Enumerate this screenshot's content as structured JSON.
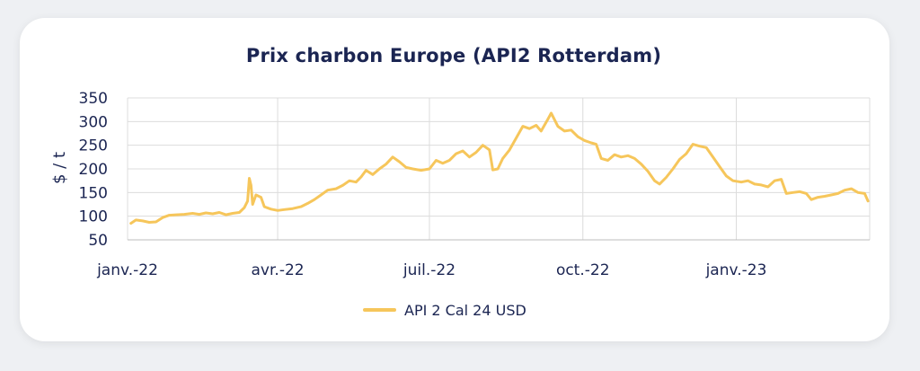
{
  "chart_data": {
    "type": "line",
    "title": "Prix charbon Europe (API2 Rotterdam)",
    "xlabel": "",
    "ylabel": "$ / t",
    "ylim": [
      50,
      350
    ],
    "yticks": [
      50,
      100,
      150,
      200,
      250,
      300,
      350
    ],
    "xtick_labels": [
      "janv.-22",
      "avr.-22",
      "juil.-22",
      "oct.-22",
      "janv.-23"
    ],
    "xtick_dates": [
      "2022-01-01",
      "2022-04-01",
      "2022-07-01",
      "2022-10-01",
      "2023-01-01"
    ],
    "xlim": [
      "2022-01-01",
      "2023-03-22"
    ],
    "grid": "horizontal and vertical",
    "legend": "bottom-center",
    "series": [
      {
        "name": "API 2 Cal 24 USD",
        "color": "#f6c65b",
        "points": [
          [
            "2022-01-03",
            85
          ],
          [
            "2022-01-06",
            92
          ],
          [
            "2022-01-10",
            90
          ],
          [
            "2022-01-14",
            87
          ],
          [
            "2022-01-18",
            88
          ],
          [
            "2022-01-22",
            97
          ],
          [
            "2022-01-26",
            102
          ],
          [
            "2022-01-30",
            103
          ],
          [
            "2022-02-04",
            104
          ],
          [
            "2022-02-09",
            106
          ],
          [
            "2022-02-13",
            104
          ],
          [
            "2022-02-17",
            107
          ],
          [
            "2022-02-21",
            105
          ],
          [
            "2022-02-25",
            108
          ],
          [
            "2022-03-01",
            103
          ],
          [
            "2022-03-05",
            106
          ],
          [
            "2022-03-09",
            108
          ],
          [
            "2022-03-12",
            118
          ],
          [
            "2022-03-14",
            132
          ],
          [
            "2022-03-15",
            180
          ],
          [
            "2022-03-16",
            165
          ],
          [
            "2022-03-17",
            125
          ],
          [
            "2022-03-19",
            145
          ],
          [
            "2022-03-22",
            140
          ],
          [
            "2022-03-24",
            120
          ],
          [
            "2022-03-28",
            115
          ],
          [
            "2022-04-01",
            112
          ],
          [
            "2022-04-05",
            114
          ],
          [
            "2022-04-10",
            116
          ],
          [
            "2022-04-15",
            120
          ],
          [
            "2022-04-19",
            127
          ],
          [
            "2022-04-23",
            135
          ],
          [
            "2022-04-27",
            145
          ],
          [
            "2022-05-01",
            155
          ],
          [
            "2022-05-06",
            158
          ],
          [
            "2022-05-10",
            165
          ],
          [
            "2022-05-14",
            175
          ],
          [
            "2022-05-18",
            172
          ],
          [
            "2022-05-21",
            183
          ],
          [
            "2022-05-24",
            197
          ],
          [
            "2022-05-28",
            188
          ],
          [
            "2022-06-01",
            200
          ],
          [
            "2022-06-05",
            210
          ],
          [
            "2022-06-09",
            225
          ],
          [
            "2022-06-13",
            215
          ],
          [
            "2022-06-17",
            203
          ],
          [
            "2022-06-21",
            200
          ],
          [
            "2022-06-26",
            197
          ],
          [
            "2022-07-01",
            200
          ],
          [
            "2022-07-05",
            218
          ],
          [
            "2022-07-09",
            212
          ],
          [
            "2022-07-13",
            218
          ],
          [
            "2022-07-17",
            232
          ],
          [
            "2022-07-21",
            238
          ],
          [
            "2022-07-25",
            225
          ],
          [
            "2022-07-29",
            235
          ],
          [
            "2022-08-02",
            250
          ],
          [
            "2022-08-06",
            240
          ],
          [
            "2022-08-08",
            198
          ],
          [
            "2022-08-11",
            200
          ],
          [
            "2022-08-14",
            222
          ],
          [
            "2022-08-18",
            240
          ],
          [
            "2022-08-22",
            265
          ],
          [
            "2022-08-26",
            290
          ],
          [
            "2022-08-30",
            285
          ],
          [
            "2022-09-03",
            292
          ],
          [
            "2022-09-06",
            280
          ],
          [
            "2022-09-10",
            305
          ],
          [
            "2022-09-12",
            318
          ],
          [
            "2022-09-16",
            290
          ],
          [
            "2022-09-20",
            280
          ],
          [
            "2022-09-24",
            282
          ],
          [
            "2022-09-28",
            268
          ],
          [
            "2022-10-02",
            260
          ],
          [
            "2022-10-06",
            255
          ],
          [
            "2022-10-09",
            252
          ],
          [
            "2022-10-12",
            222
          ],
          [
            "2022-10-16",
            218
          ],
          [
            "2022-10-20",
            230
          ],
          [
            "2022-10-24",
            225
          ],
          [
            "2022-10-28",
            228
          ],
          [
            "2022-11-01",
            222
          ],
          [
            "2022-11-05",
            210
          ],
          [
            "2022-11-09",
            195
          ],
          [
            "2022-11-13",
            175
          ],
          [
            "2022-11-16",
            168
          ],
          [
            "2022-11-20",
            182
          ],
          [
            "2022-11-24",
            200
          ],
          [
            "2022-11-28",
            220
          ],
          [
            "2022-12-02",
            232
          ],
          [
            "2022-12-06",
            252
          ],
          [
            "2022-12-10",
            248
          ],
          [
            "2022-12-14",
            245
          ],
          [
            "2022-12-18",
            225
          ],
          [
            "2022-12-22",
            205
          ],
          [
            "2022-12-26",
            185
          ],
          [
            "2022-12-30",
            175
          ],
          [
            "2023-01-04",
            172
          ],
          [
            "2023-01-08",
            175
          ],
          [
            "2023-01-12",
            168
          ],
          [
            "2023-01-16",
            166
          ],
          [
            "2023-01-20",
            162
          ],
          [
            "2023-01-24",
            175
          ],
          [
            "2023-01-28",
            178
          ],
          [
            "2023-01-31",
            148
          ],
          [
            "2023-02-04",
            150
          ],
          [
            "2023-02-08",
            152
          ],
          [
            "2023-02-12",
            148
          ],
          [
            "2023-02-15",
            135
          ],
          [
            "2023-02-19",
            140
          ],
          [
            "2023-02-23",
            142
          ],
          [
            "2023-02-27",
            145
          ],
          [
            "2023-03-03",
            148
          ],
          [
            "2023-03-07",
            155
          ],
          [
            "2023-03-11",
            158
          ],
          [
            "2023-03-15",
            150
          ],
          [
            "2023-03-19",
            148
          ],
          [
            "2023-03-21",
            132
          ]
        ]
      }
    ]
  }
}
